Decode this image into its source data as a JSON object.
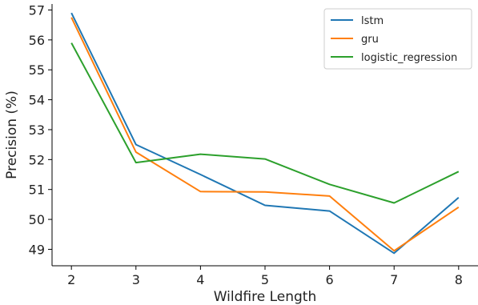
{
  "chart_data": {
    "type": "line",
    "title": "",
    "xlabel": "Wildfire Length",
    "ylabel": "Precision (%)",
    "x": [
      2,
      3,
      4,
      5,
      6,
      7,
      8
    ],
    "xlim": [
      1.7,
      8.3
    ],
    "ylim": [
      48.45,
      57.2
    ],
    "yticks": [
      49,
      50,
      51,
      52,
      53,
      54,
      55,
      56,
      57
    ],
    "grid": false,
    "legend_position": "top-right",
    "series": [
      {
        "name": "lstm",
        "color": "#1f77b4",
        "values": [
          56.9,
          52.5,
          51.5,
          50.47,
          50.28,
          48.87,
          50.73
        ]
      },
      {
        "name": "gru",
        "color": "#ff7f0e",
        "values": [
          56.75,
          52.25,
          50.93,
          50.92,
          50.78,
          48.95,
          50.41
        ]
      },
      {
        "name": "logistic_regression",
        "color": "#2ca02c",
        "values": [
          55.9,
          51.9,
          52.18,
          52.02,
          51.17,
          50.55,
          51.6
        ]
      }
    ]
  }
}
